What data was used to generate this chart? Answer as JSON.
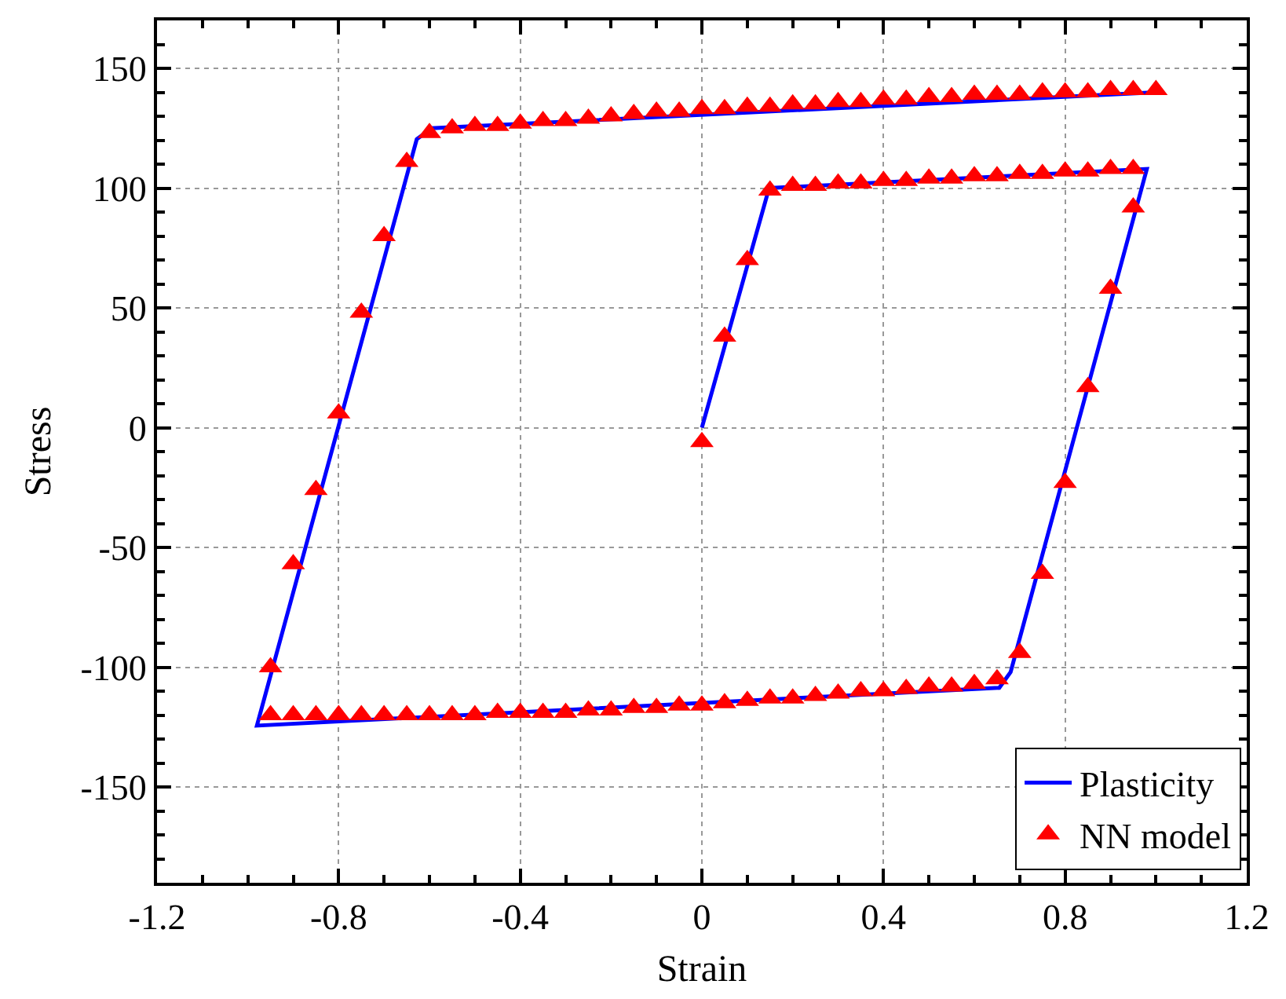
{
  "chart_data": {
    "type": "line",
    "xlabel": "Strain",
    "ylabel": "Stress",
    "xlim": [
      -1.2,
      1.2
    ],
    "xticks": [
      -1.2,
      -0.8,
      -0.4,
      0,
      0.4,
      0.8,
      1.2
    ],
    "ylim": [
      -190,
      170
    ],
    "yticks": [
      -150,
      -100,
      -50,
      0,
      50,
      100,
      150
    ],
    "grid": true,
    "legend": "bottom right",
    "series": [
      {
        "name": "Plasticity",
        "color": "#0000ff",
        "line_style": "solid",
        "marker": "none",
        "x": [
          0,
          0.148,
          0.98,
          0.68,
          0.655,
          -0.98,
          -0.628,
          -0.595,
          1.0
        ],
        "values": [
          0,
          100,
          108,
          -102,
          -108.6,
          -124.4,
          120.4,
          125,
          140
        ]
      },
      {
        "name": "NN model",
        "type": "scatter",
        "color": "#ff0000",
        "marker": "triangle",
        "x": [
          0,
          0.05,
          0.1,
          0.15,
          0.2,
          0.25,
          0.3,
          0.35,
          0.4,
          0.45,
          0.5,
          0.55,
          0.6,
          0.65,
          0.7,
          0.75,
          0.8,
          0.85,
          0.9,
          0.95,
          0.95,
          0.9,
          0.85,
          0.8,
          0.75,
          0.7,
          0.65,
          0.6,
          0.55,
          0.5,
          0.45,
          0.4,
          0.35,
          0.3,
          0.25,
          0.2,
          0.15,
          0.1,
          0.05,
          0,
          -0.05,
          -0.1,
          -0.15,
          -0.2,
          -0.25,
          -0.3,
          -0.35,
          -0.4,
          -0.45,
          -0.5,
          -0.55,
          -0.6,
          -0.65,
          -0.7,
          -0.75,
          -0.8,
          -0.85,
          -0.9,
          -0.95,
          -0.95,
          -0.9,
          -0.85,
          -0.8,
          -0.75,
          -0.7,
          -0.65,
          -0.6,
          -0.55,
          -0.5,
          -0.45,
          -0.4,
          -0.35,
          -0.3,
          -0.25,
          -0.2,
          -0.15,
          -0.1,
          -0.05,
          0,
          0.05,
          0.1,
          0.15,
          0.2,
          0.25,
          0.3,
          0.35,
          0.4,
          0.45,
          0.5,
          0.55,
          0.6,
          0.65,
          0.7,
          0.75,
          0.8,
          0.85,
          0.9,
          0.95,
          1.0
        ],
        "values": [
          -6,
          38,
          70,
          99,
          101,
          101,
          102,
          102,
          103,
          103,
          104,
          104,
          105,
          105,
          106,
          106,
          107,
          107,
          108,
          108,
          92,
          58,
          17,
          -23,
          -61,
          -94,
          -105,
          -107,
          -108,
          -108,
          -109,
          -110,
          -110,
          -111,
          -112,
          -113,
          -113,
          -114,
          -115,
          -116,
          -116,
          -117,
          -117,
          -118,
          -118,
          -119,
          -119,
          -119,
          -119,
          -120,
          -120,
          -120,
          -120,
          -120,
          -120,
          -120,
          -120,
          -120,
          -120,
          -100,
          -57,
          -26,
          6,
          48,
          80,
          111,
          123,
          125,
          126,
          126,
          127,
          128,
          128,
          129,
          130,
          131,
          132,
          132,
          133,
          133,
          134,
          134,
          135,
          135,
          136,
          136,
          137,
          137,
          138,
          138,
          139,
          139,
          139,
          140,
          140,
          140,
          141,
          141,
          141
        ]
      }
    ]
  }
}
